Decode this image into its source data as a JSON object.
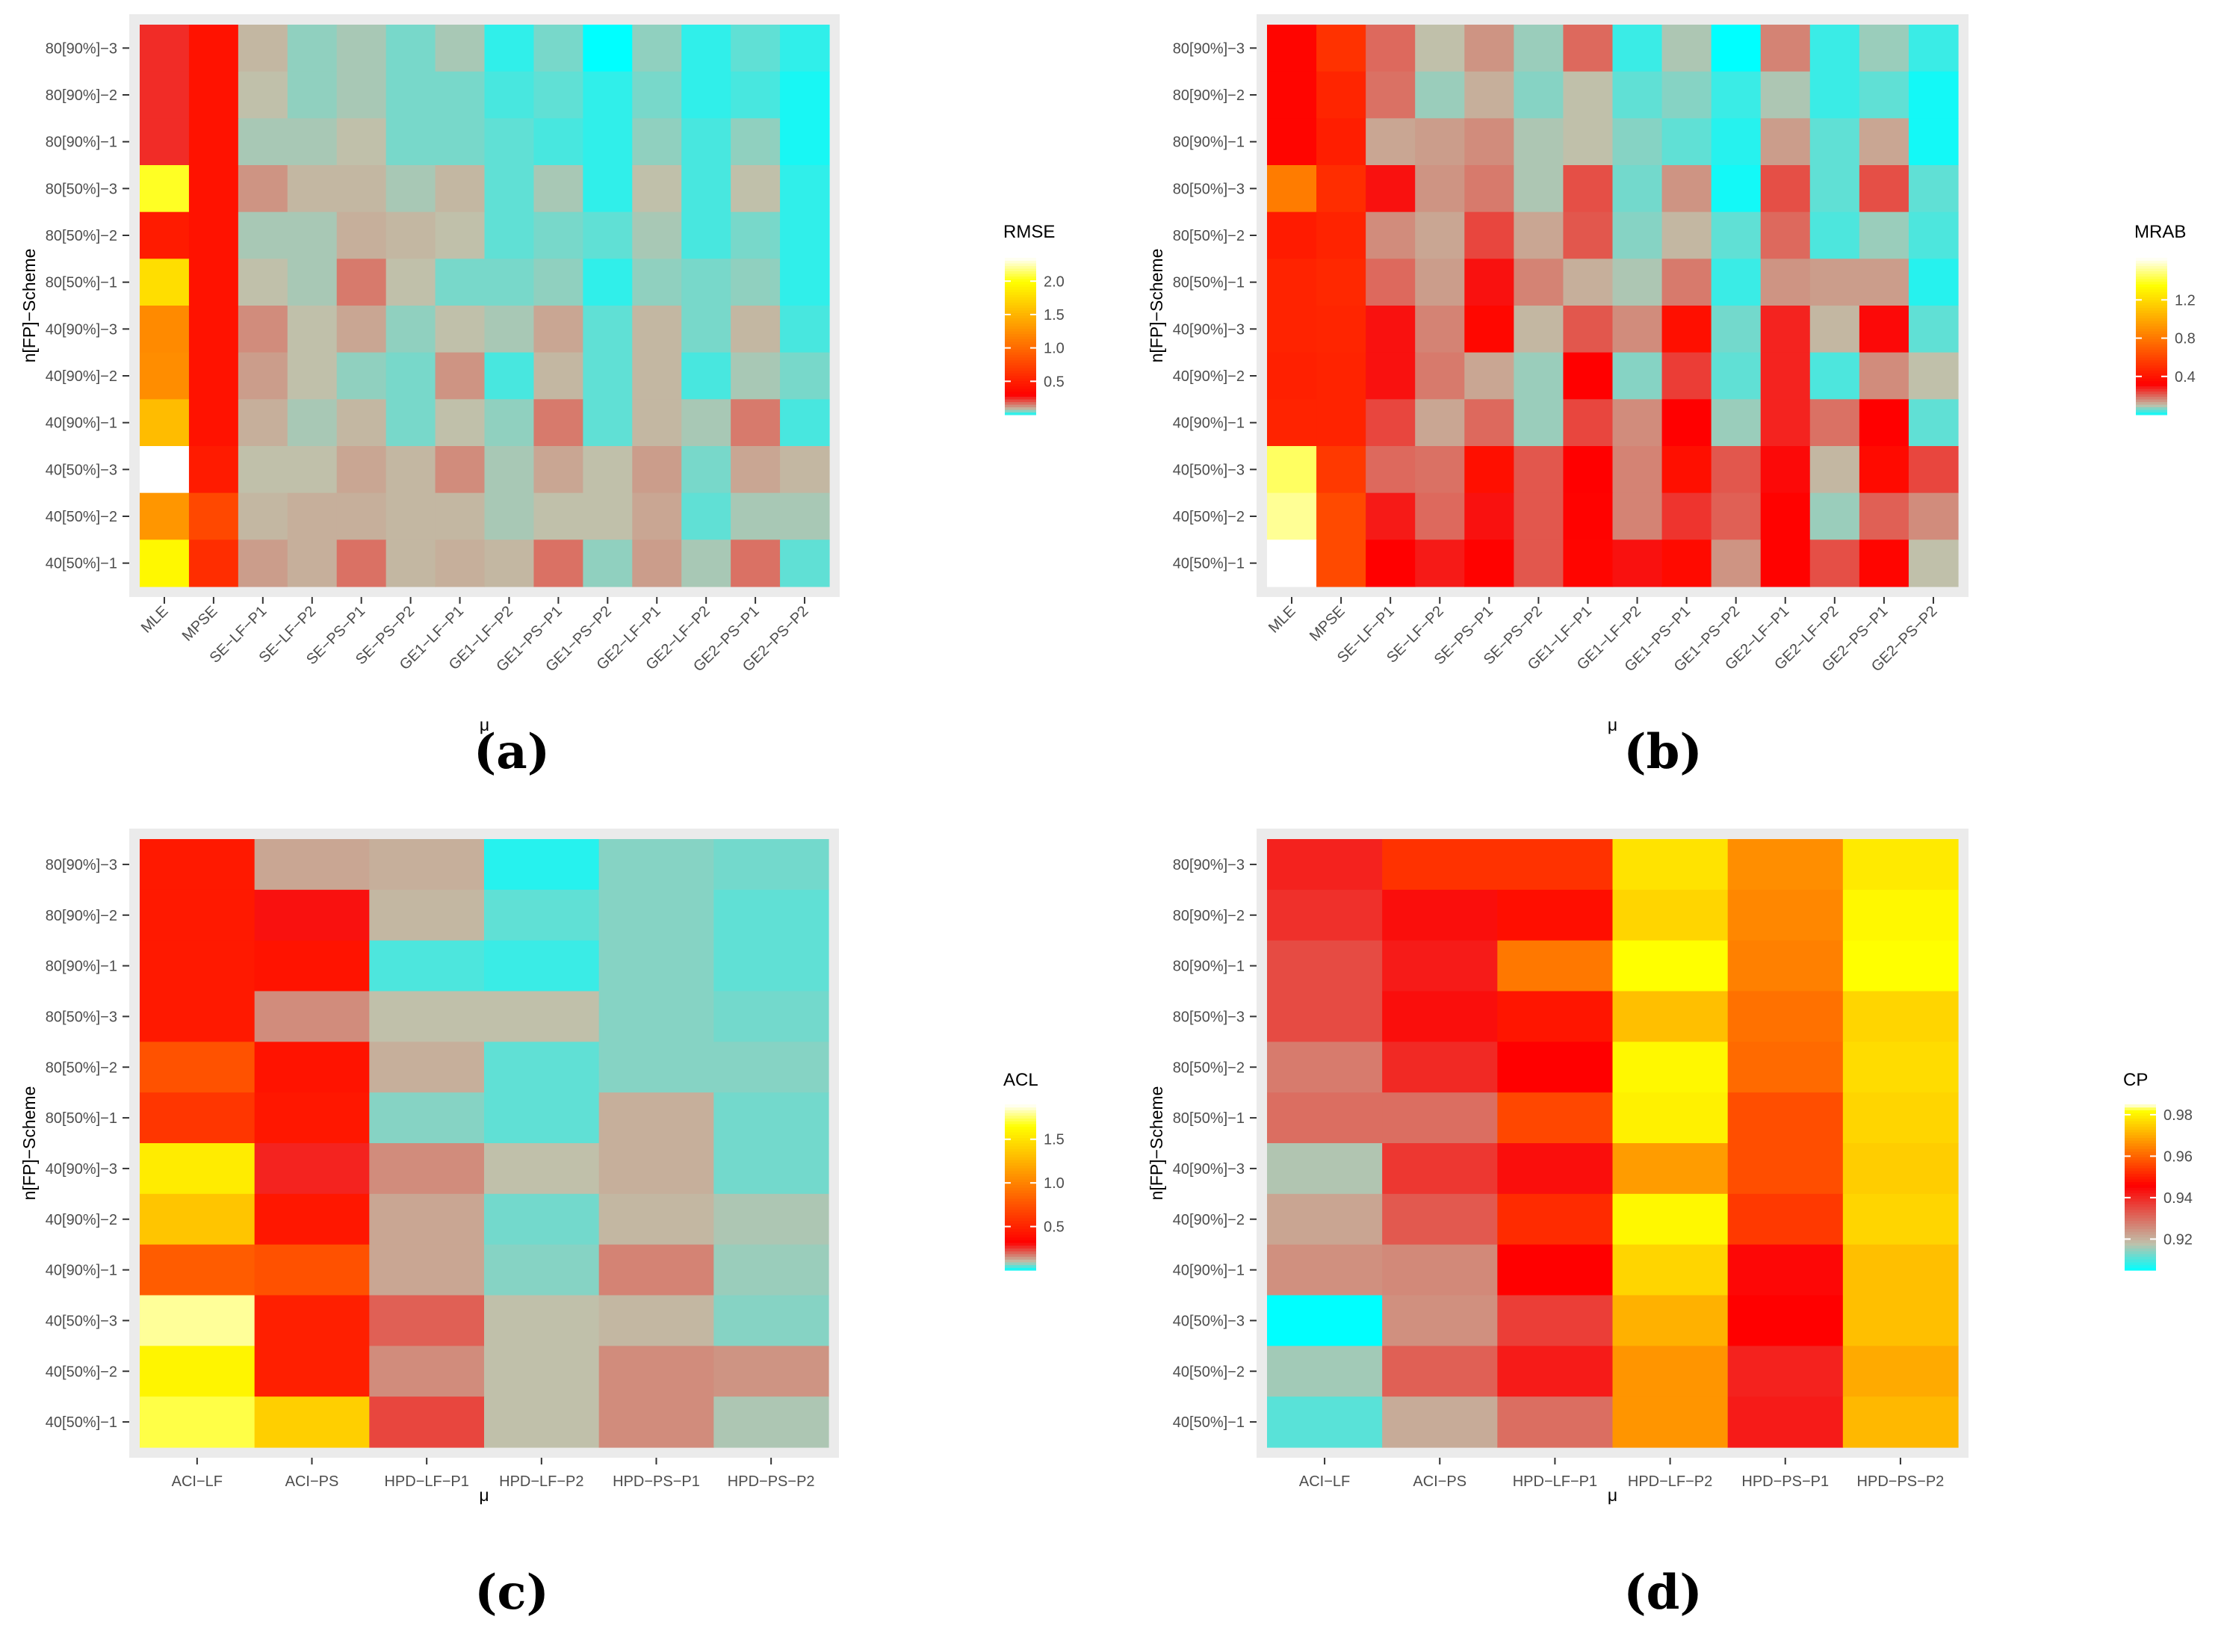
{
  "figure": {
    "panel_labels": [
      "(a)",
      "(b)",
      "(c)",
      "(d)"
    ],
    "colors": {
      "background": "#ffffff",
      "panel_bg": "#ebebeb",
      "text": "#4d4d4d",
      "title": "#000000",
      "scale_low": "#00ffff",
      "scale_mid": "#c0c0aa",
      "scale_midhigh": "#ff0000",
      "scale_high": "#ffff00",
      "scale_top": "#ffffff"
    }
  },
  "chart_data": [
    {
      "type": "heatmap",
      "panel": "(a)",
      "legend_title": "RMSE",
      "xlabel": "μ",
      "ylabel": "n[FP]−Scheme",
      "x_categories": [
        "MLE",
        "MPSE",
        "SE−LF−P1",
        "SE−LF−P2",
        "SE−PS−P1",
        "SE−PS−P2",
        "GE1−LF−P1",
        "GE1−LF−P2",
        "GE1−PS−P1",
        "GE1−PS−P2",
        "GE2−LF−P1",
        "GE2−LF−P2",
        "GE2−PS−P1",
        "GE2−PS−P2"
      ],
      "y_categories": [
        "80[90%]−3",
        "80[90%]−2",
        "80[90%]−1",
        "80[50%]−3",
        "80[50%]−2",
        "80[50%]−1",
        "40[90%]−3",
        "40[90%]−2",
        "40[90%]−1",
        "40[50%]−3",
        "40[50%]−2",
        "40[50%]−1"
      ],
      "values": [
        [
          0.25,
          0.42,
          0.09,
          0.06,
          0.07,
          0.05,
          0.07,
          0.02,
          0.05,
          0.0,
          0.06,
          0.02,
          0.04,
          0.02
        ],
        [
          0.25,
          0.42,
          0.08,
          0.06,
          0.07,
          0.05,
          0.05,
          0.03,
          0.04,
          0.02,
          0.05,
          0.02,
          0.03,
          0.01
        ],
        [
          0.25,
          0.42,
          0.07,
          0.07,
          0.08,
          0.05,
          0.05,
          0.04,
          0.03,
          0.02,
          0.06,
          0.03,
          0.06,
          0.01
        ],
        [
          2.05,
          0.42,
          0.13,
          0.09,
          0.09,
          0.07,
          0.09,
          0.04,
          0.07,
          0.02,
          0.08,
          0.03,
          0.08,
          0.02
        ],
        [
          0.48,
          0.42,
          0.07,
          0.07,
          0.1,
          0.09,
          0.08,
          0.04,
          0.05,
          0.04,
          0.07,
          0.03,
          0.05,
          0.02
        ],
        [
          1.78,
          0.42,
          0.08,
          0.07,
          0.16,
          0.08,
          0.05,
          0.05,
          0.06,
          0.02,
          0.06,
          0.05,
          0.06,
          0.02
        ],
        [
          1.22,
          0.42,
          0.14,
          0.08,
          0.11,
          0.06,
          0.08,
          0.07,
          0.11,
          0.04,
          0.09,
          0.05,
          0.09,
          0.03
        ],
        [
          1.24,
          0.42,
          0.12,
          0.08,
          0.06,
          0.05,
          0.13,
          0.03,
          0.09,
          0.04,
          0.09,
          0.03,
          0.07,
          0.05
        ],
        [
          1.55,
          0.42,
          0.1,
          0.07,
          0.09,
          0.05,
          0.08,
          0.06,
          0.16,
          0.04,
          0.09,
          0.07,
          0.16,
          0.03
        ],
        [
          2.35,
          0.48,
          0.08,
          0.08,
          0.11,
          0.09,
          0.14,
          0.07,
          0.11,
          0.08,
          0.12,
          0.05,
          0.11,
          0.09
        ],
        [
          1.3,
          0.78,
          0.09,
          0.1,
          0.1,
          0.09,
          0.09,
          0.07,
          0.08,
          0.08,
          0.11,
          0.04,
          0.07,
          0.07
        ],
        [
          1.95,
          0.6,
          0.12,
          0.1,
          0.17,
          0.09,
          0.1,
          0.09,
          0.17,
          0.06,
          0.12,
          0.07,
          0.17,
          0.04
        ]
      ],
      "legend_ticks": [
        0.5,
        1.0,
        1.5,
        2.0
      ],
      "legend_tick_labels": [
        "0.5",
        "1.0",
        "1.5",
        "2.0"
      ],
      "scale_range": [
        0.0,
        2.35
      ],
      "scale_stops": [
        0.0,
        0.08,
        0.3,
        2.0,
        2.35
      ]
    },
    {
      "type": "heatmap",
      "panel": "(b)",
      "legend_title": "MRAB",
      "xlabel": "μ",
      "ylabel": "n[FP]−Scheme",
      "x_categories": [
        "MLE",
        "MPSE",
        "SE−LF−P1",
        "SE−LF−P2",
        "SE−PS−P1",
        "SE−PS−P2",
        "GE1−LF−P1",
        "GE1−LF−P2",
        "GE1−PS−P1",
        "GE1−PS−P2",
        "GE2−LF−P1",
        "GE2−LF−P2",
        "GE2−PS−P1",
        "GE2−PS−P2"
      ],
      "y_categories": [
        "80[90%]−3",
        "80[90%]−2",
        "80[90%]−1",
        "80[50%]−3",
        "80[50%]−2",
        "80[50%]−1",
        "40[90%]−3",
        "40[90%]−2",
        "40[90%]−1",
        "40[50%]−3",
        "40[50%]−2",
        "40[50%]−1"
      ],
      "values": [
        [
          0.34,
          0.52,
          0.2,
          0.1,
          0.15,
          0.08,
          0.2,
          0.03,
          0.09,
          0.0,
          0.17,
          0.03,
          0.08,
          0.03
        ],
        [
          0.34,
          0.47,
          0.19,
          0.08,
          0.12,
          0.07,
          0.1,
          0.05,
          0.07,
          0.03,
          0.09,
          0.03,
          0.05,
          0.01
        ],
        [
          0.34,
          0.44,
          0.13,
          0.14,
          0.16,
          0.09,
          0.1,
          0.07,
          0.05,
          0.02,
          0.14,
          0.05,
          0.13,
          0.01
        ],
        [
          0.82,
          0.5,
          0.3,
          0.15,
          0.18,
          0.09,
          0.23,
          0.06,
          0.15,
          0.01,
          0.23,
          0.05,
          0.23,
          0.05
        ],
        [
          0.43,
          0.46,
          0.16,
          0.13,
          0.24,
          0.13,
          0.22,
          0.07,
          0.11,
          0.05,
          0.2,
          0.04,
          0.08,
          0.04
        ],
        [
          0.46,
          0.48,
          0.2,
          0.14,
          0.3,
          0.17,
          0.12,
          0.09,
          0.18,
          0.03,
          0.15,
          0.14,
          0.14,
          0.02
        ],
        [
          0.46,
          0.47,
          0.3,
          0.17,
          0.35,
          0.11,
          0.22,
          0.16,
          0.38,
          0.06,
          0.28,
          0.11,
          0.31,
          0.05
        ],
        [
          0.45,
          0.46,
          0.3,
          0.18,
          0.13,
          0.08,
          0.32,
          0.07,
          0.25,
          0.05,
          0.28,
          0.04,
          0.16,
          0.1
        ],
        [
          0.46,
          0.46,
          0.24,
          0.13,
          0.2,
          0.08,
          0.24,
          0.16,
          0.32,
          0.08,
          0.28,
          0.19,
          0.32,
          0.05
        ],
        [
          1.46,
          0.55,
          0.2,
          0.19,
          0.38,
          0.22,
          0.32,
          0.17,
          0.38,
          0.22,
          0.31,
          0.11,
          0.36,
          0.24
        ],
        [
          1.52,
          0.62,
          0.29,
          0.2,
          0.3,
          0.22,
          0.33,
          0.17,
          0.26,
          0.21,
          0.33,
          0.08,
          0.21,
          0.16
        ],
        [
          1.64,
          0.62,
          0.32,
          0.29,
          0.33,
          0.22,
          0.34,
          0.3,
          0.36,
          0.15,
          0.33,
          0.23,
          0.34,
          0.1
        ]
      ],
      "legend_ticks": [
        0.4,
        0.8,
        1.2
      ],
      "legend_tick_labels": [
        "0.4",
        "0.8",
        "1.2"
      ],
      "scale_range": [
        0.0,
        1.64
      ],
      "scale_stops": [
        0.0,
        0.1,
        0.32,
        1.35,
        1.64
      ]
    },
    {
      "type": "heatmap",
      "panel": "(c)",
      "legend_title": "ACL",
      "xlabel": "μ",
      "ylabel": "n[FP]−Scheme",
      "x_categories": [
        "ACI−LF",
        "ACI−PS",
        "HPD−LF−P1",
        "HPD−LF−P2",
        "HPD−PS−P1",
        "HPD−PS−P2"
      ],
      "y_categories": [
        "80[90%]−3",
        "80[90%]−2",
        "80[90%]−1",
        "80[50%]−3",
        "80[50%]−2",
        "80[50%]−1",
        "40[90%]−3",
        "40[90%]−2",
        "40[90%]−1",
        "40[50%]−3",
        "40[50%]−2",
        "40[50%]−1"
      ],
      "values": [
        [
          0.45,
          0.13,
          0.12,
          0.02,
          0.07,
          0.06
        ],
        [
          0.45,
          0.3,
          0.11,
          0.05,
          0.07,
          0.05
        ],
        [
          0.45,
          0.42,
          0.04,
          0.03,
          0.07,
          0.05
        ],
        [
          0.45,
          0.16,
          0.1,
          0.1,
          0.07,
          0.06
        ],
        [
          0.75,
          0.42,
          0.12,
          0.05,
          0.07,
          0.07
        ],
        [
          0.6,
          0.44,
          0.07,
          0.05,
          0.12,
          0.06
        ],
        [
          1.55,
          0.28,
          0.16,
          0.1,
          0.12,
          0.06
        ],
        [
          1.35,
          0.44,
          0.13,
          0.06,
          0.11,
          0.09
        ],
        [
          0.8,
          0.74,
          0.13,
          0.07,
          0.17,
          0.08
        ],
        [
          1.8,
          0.48,
          0.21,
          0.1,
          0.11,
          0.07
        ],
        [
          1.6,
          0.48,
          0.16,
          0.1,
          0.16,
          0.15
        ],
        [
          1.72,
          1.4,
          0.24,
          0.1,
          0.16,
          0.09
        ]
      ],
      "legend_ticks": [
        0.5,
        1.0,
        1.5
      ],
      "legend_tick_labels": [
        "0.5",
        "1.0",
        "1.5"
      ],
      "scale_range": [
        0.0,
        1.9
      ],
      "scale_stops": [
        0.0,
        0.1,
        0.32,
        1.65,
        1.9
      ]
    },
    {
      "type": "heatmap",
      "panel": "(d)",
      "legend_title": "CP",
      "xlabel": "μ",
      "ylabel": "n[FP]−Scheme",
      "x_categories": [
        "ACI−LF",
        "ACI−PS",
        "HPD−LF−P1",
        "HPD−LF−P2",
        "HPD−PS−P1",
        "HPD−PS−P2"
      ],
      "y_categories": [
        "80[90%]−3",
        "80[90%]−2",
        "80[90%]−1",
        "80[50%]−3",
        "80[50%]−2",
        "80[50%]−1",
        "40[90%]−3",
        "40[90%]−2",
        "40[90%]−1",
        "40[50%]−3",
        "40[50%]−2",
        "40[50%]−1"
      ],
      "values": [
        [
          0.941,
          0.953,
          0.953,
          0.978,
          0.966,
          0.979
        ],
        [
          0.939,
          0.944,
          0.948,
          0.976,
          0.965,
          0.981
        ],
        [
          0.935,
          0.942,
          0.963,
          0.982,
          0.964,
          0.982
        ],
        [
          0.935,
          0.944,
          0.949,
          0.973,
          0.962,
          0.976
        ],
        [
          0.928,
          0.94,
          0.946,
          0.981,
          0.961,
          0.977
        ],
        [
          0.93,
          0.93,
          0.956,
          0.98,
          0.957,
          0.976
        ],
        [
          0.917,
          0.938,
          0.944,
          0.968,
          0.957,
          0.975
        ],
        [
          0.922,
          0.933,
          0.952,
          0.981,
          0.954,
          0.976
        ],
        [
          0.925,
          0.926,
          0.946,
          0.976,
          0.945,
          0.973
        ],
        [
          0.905,
          0.925,
          0.937,
          0.971,
          0.946,
          0.973
        ],
        [
          0.916,
          0.932,
          0.942,
          0.967,
          0.941,
          0.97
        ],
        [
          0.911,
          0.921,
          0.93,
          0.967,
          0.942,
          0.972
        ]
      ],
      "legend_ticks": [
        0.92,
        0.94,
        0.96,
        0.98
      ],
      "legend_tick_labels": [
        "0.92",
        "0.94",
        "0.96",
        "0.98"
      ],
      "scale_range": [
        0.905,
        0.985
      ],
      "scale_stops": [
        0.905,
        0.918,
        0.946,
        0.982,
        0.985
      ]
    }
  ]
}
